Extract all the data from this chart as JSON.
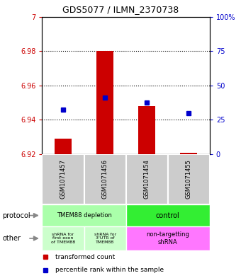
{
  "title": "GDS5077 / ILMN_2370738",
  "samples": [
    "GSM1071457",
    "GSM1071456",
    "GSM1071454",
    "GSM1071455"
  ],
  "bar_values": [
    6.929,
    6.98,
    6.948,
    6.921
  ],
  "bar_base": 6.92,
  "percentile_values": [
    6.946,
    6.953,
    6.95,
    6.944
  ],
  "ylim": [
    6.92,
    7.0
  ],
  "y_left_ticks": [
    6.92,
    6.94,
    6.96,
    6.98,
    7.0
  ],
  "y_left_labels": [
    "6.92",
    "6.94",
    "6.96",
    "6.98",
    "7"
  ],
  "y_right_ticks_pct": [
    0,
    25,
    50,
    75,
    100
  ],
  "dotted_lines": [
    6.98,
    6.96,
    6.94
  ],
  "bar_color": "#cc0000",
  "percentile_color": "#0000cc",
  "left_label_color": "#cc0000",
  "right_label_color": "#0000cc",
  "sample_bg_color": "#cccccc",
  "prot_depletion_color": "#aaffaa",
  "prot_control_color": "#33ee33",
  "other_light_green": "#ccffcc",
  "other_pink": "#ff77ff",
  "figsize": [
    3.4,
    3.93
  ],
  "dpi": 100
}
